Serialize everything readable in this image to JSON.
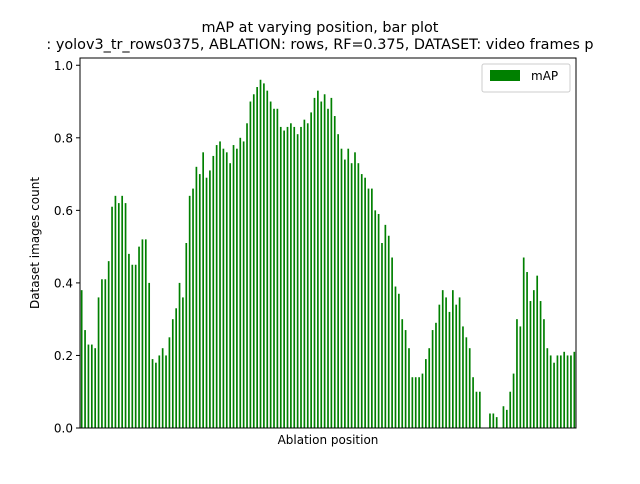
{
  "chart_data": {
    "type": "bar",
    "title_line1": "mAP at varying position, bar plot",
    "title_line2": ": yolov3_tr_rows0375, ABLATION: rows, RF=0.375, DATASET: video frames p",
    "xlabel": "Ablation position",
    "ylabel": "Dataset images count",
    "ylim": [
      0,
      1.02
    ],
    "yticks": [
      0.0,
      0.2,
      0.4,
      0.6,
      0.8,
      1.0
    ],
    "ytick_labels": [
      "0.0",
      "0.2",
      "0.4",
      "0.6",
      "0.8",
      "1.0"
    ],
    "legend": {
      "label": "mAP",
      "position": "top-right"
    },
    "bar_color": "#008000",
    "series": [
      {
        "name": "mAP",
        "values": [
          0.38,
          0.27,
          0.23,
          0.23,
          0.22,
          0.36,
          0.41,
          0.41,
          0.46,
          0.61,
          0.64,
          0.62,
          0.64,
          0.62,
          0.48,
          0.45,
          0.45,
          0.5,
          0.52,
          0.52,
          0.4,
          0.19,
          0.18,
          0.2,
          0.22,
          0.2,
          0.25,
          0.3,
          0.33,
          0.4,
          0.36,
          0.51,
          0.64,
          0.66,
          0.72,
          0.7,
          0.76,
          0.69,
          0.71,
          0.75,
          0.78,
          0.79,
          0.77,
          0.76,
          0.73,
          0.78,
          0.77,
          0.8,
          0.79,
          0.84,
          0.9,
          0.92,
          0.94,
          0.96,
          0.95,
          0.93,
          0.9,
          0.88,
          0.88,
          0.83,
          0.82,
          0.83,
          0.84,
          0.83,
          0.81,
          0.83,
          0.85,
          0.84,
          0.87,
          0.91,
          0.93,
          0.9,
          0.92,
          0.88,
          0.91,
          0.86,
          0.81,
          0.77,
          0.74,
          0.77,
          0.73,
          0.76,
          0.73,
          0.7,
          0.69,
          0.66,
          0.66,
          0.6,
          0.59,
          0.51,
          0.56,
          0.53,
          0.47,
          0.39,
          0.37,
          0.3,
          0.27,
          0.22,
          0.14,
          0.14,
          0.14,
          0.15,
          0.19,
          0.22,
          0.27,
          0.29,
          0.34,
          0.38,
          0.36,
          0.32,
          0.38,
          0.34,
          0.36,
          0.28,
          0.25,
          0.22,
          0.14,
          0.1,
          0.1,
          0.0,
          0.0,
          0.04,
          0.04,
          0.03,
          0.0,
          0.06,
          0.05,
          0.1,
          0.15,
          0.3,
          0.28,
          0.47,
          0.43,
          0.35,
          0.38,
          0.42,
          0.35,
          0.3,
          0.22,
          0.2,
          0.18,
          0.2,
          0.2,
          0.21,
          0.2,
          0.2,
          0.21
        ]
      }
    ]
  }
}
